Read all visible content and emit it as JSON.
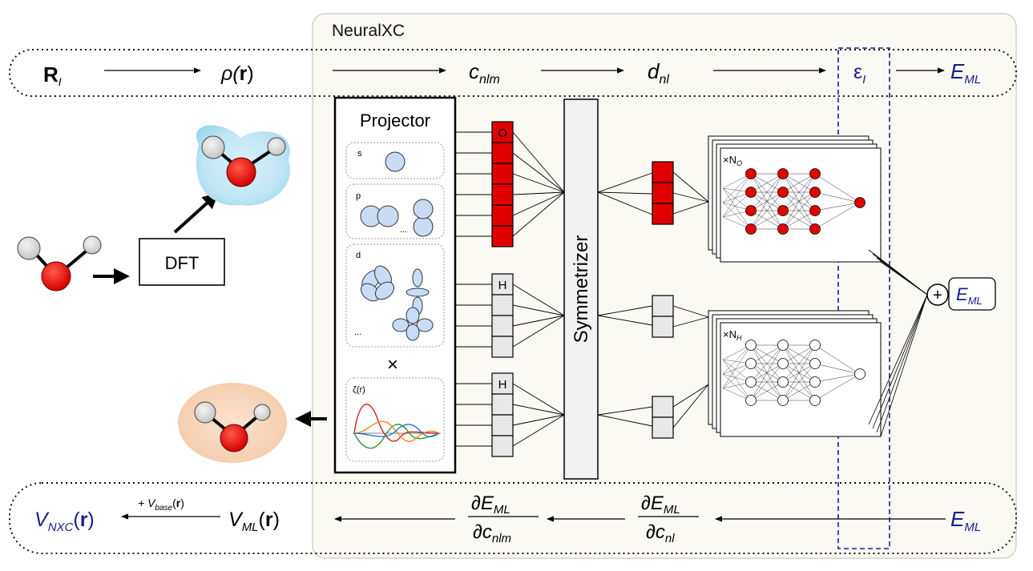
{
  "container": {
    "title": "NeuralXC"
  },
  "top_row": {
    "r_label": "R",
    "r_sub": "I",
    "rho_label": "ρ(",
    "rho_bold": "r",
    "rho_close": ")",
    "c_label": "c",
    "c_sub": "nlm",
    "d_label": "d",
    "d_sub": "nl",
    "eps_label": "ε",
    "eps_sub": "I",
    "e_label": "E",
    "e_sub": "ML"
  },
  "left": {
    "dft_label": "DFT"
  },
  "projector": {
    "title": "Projector",
    "s_label": "s",
    "p_label": "p",
    "p_ellipsis": "...",
    "d_label": "d",
    "d_ellipsis": "...",
    "times": "×",
    "zeta_label": "ζ(r)"
  },
  "columns": {
    "o_label": "O",
    "h1_label": "H",
    "h2_label": "H"
  },
  "symmetrizer": {
    "label": "Symmetrizer"
  },
  "networks": {
    "o_mult": "×N",
    "o_sub": "O",
    "h_mult": "×N",
    "h_sub": "H"
  },
  "sum": {
    "plus": "+",
    "e_label": "E",
    "e_sub": "ML"
  },
  "bottom_row": {
    "vnxc_label": "V",
    "vnxc_sub": "NXC",
    "vnxc_r": "r",
    "vbase_prefix": "+ V",
    "vbase_sub": "base",
    "vbase_r": "r",
    "vml_label": "V",
    "vml_sub": "ML",
    "vml_r": "r",
    "dE": "∂E",
    "dE_sub": "ML",
    "dc1": "∂c",
    "dc1_sub": "nlm",
    "dc2": "∂c",
    "dc2_sub": "nl",
    "e_label": "E",
    "e_sub": "ML"
  },
  "colors": {
    "accent_navy": "#1a1f8c",
    "oxygen_red": "#e00000",
    "hydrogen_gray": "#dcdcdc",
    "orbital_blue": "#c8dcf5",
    "panel_bg": "#faf9f4",
    "cyan_glow": "#bfe6f3",
    "peach_glow": "#f7d3b8"
  }
}
